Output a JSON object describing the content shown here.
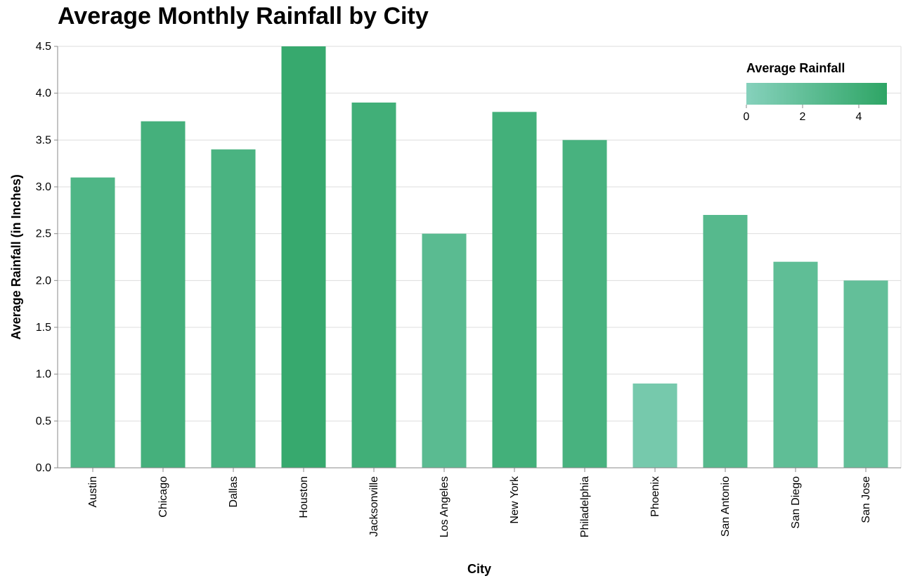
{
  "chart_data": {
    "type": "bar",
    "title": "Average Monthly Rainfall by City",
    "xlabel": "City",
    "ylabel": "Average Rainfall (in Inches)",
    "categories": [
      "Austin",
      "Chicago",
      "Dallas",
      "Houston",
      "Jacksonville",
      "Los Angeles",
      "New York",
      "Philadelphia",
      "Phoenix",
      "San Antonio",
      "San Diego",
      "San Jose"
    ],
    "values": [
      3.1,
      3.7,
      3.4,
      4.5,
      3.9,
      2.5,
      3.8,
      3.5,
      0.9,
      2.7,
      2.2,
      2.0
    ],
    "ylim": [
      0,
      4.5
    ],
    "yticks": [
      "0.0",
      "0.5",
      "1.0",
      "1.5",
      "2.0",
      "2.5",
      "3.0",
      "3.5",
      "4.0",
      "4.5"
    ],
    "grid": true,
    "color_scale": {
      "domain": [
        0,
        5
      ],
      "range": [
        "#86d1bc",
        "#2ea565"
      ]
    },
    "legend": {
      "title": "Average Rainfall",
      "placement": "top-right",
      "ticks": [
        "0",
        "2",
        "4"
      ]
    }
  }
}
